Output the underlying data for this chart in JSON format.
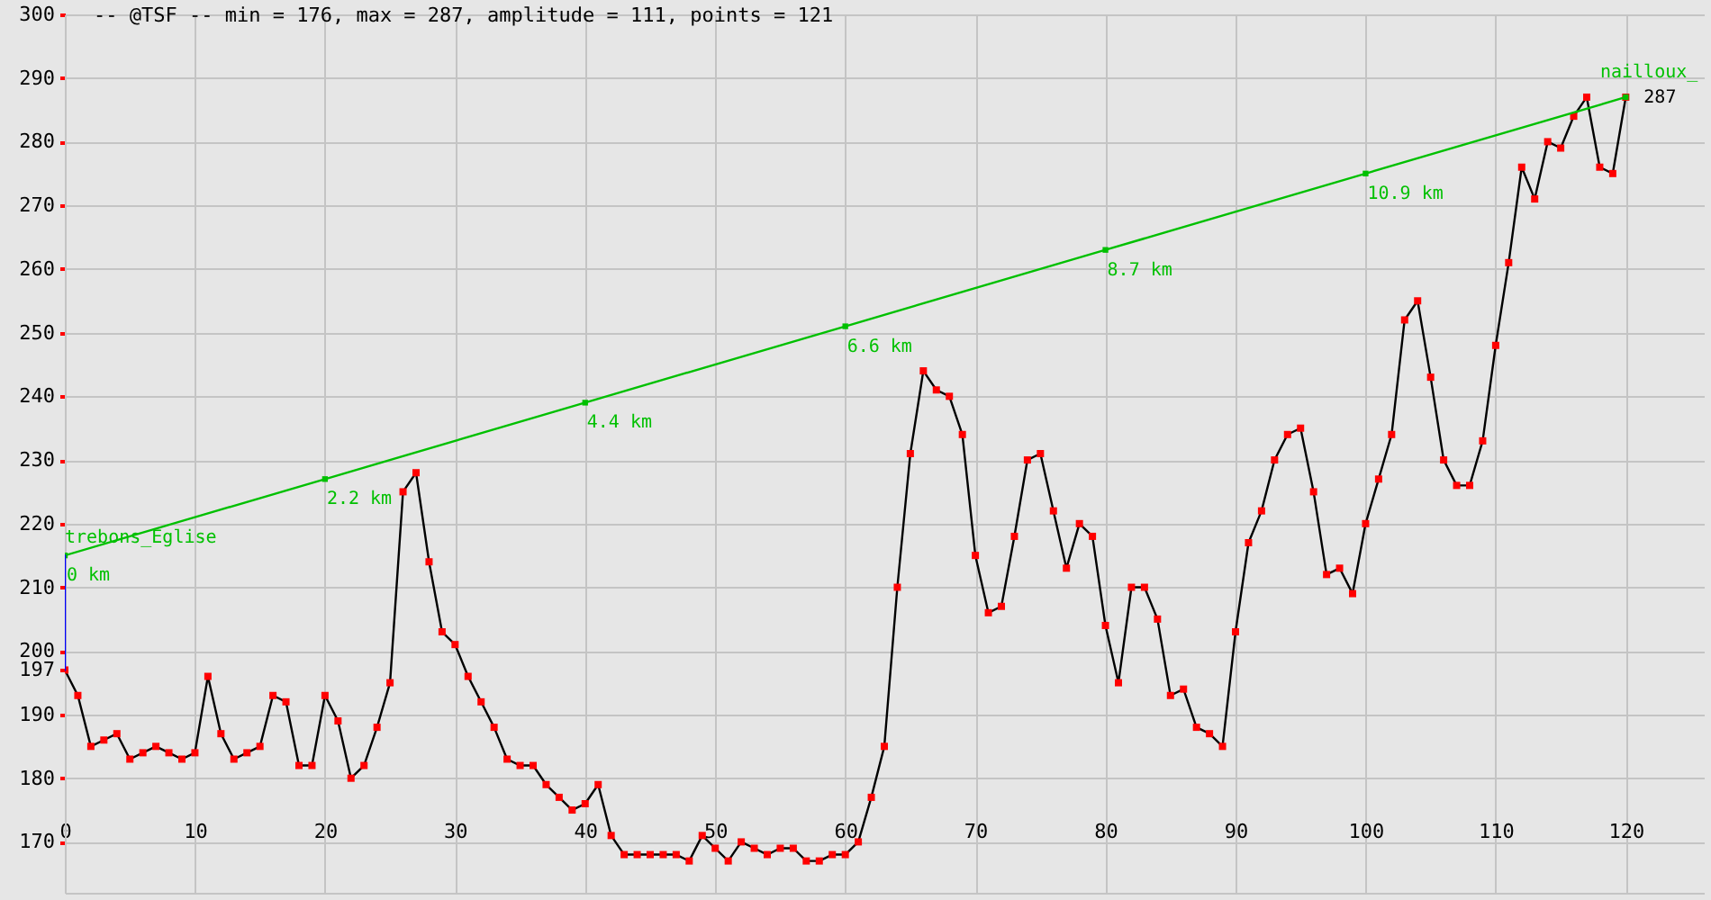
{
  "chart_data": {
    "type": "line",
    "title": "-- @TSF  --   min = 176, max = 287, amplitude = 111, points = 121",
    "x": [
      0,
      1,
      2,
      3,
      4,
      5,
      6,
      7,
      8,
      9,
      10,
      11,
      12,
      13,
      14,
      15,
      16,
      17,
      18,
      19,
      20,
      21,
      22,
      23,
      24,
      25,
      26,
      27,
      28,
      29,
      30,
      31,
      32,
      33,
      34,
      35,
      36,
      37,
      38,
      39,
      40,
      41,
      42,
      43,
      44,
      45,
      46,
      47,
      48,
      49,
      50,
      51,
      52,
      53,
      54,
      55,
      56,
      57,
      58,
      59,
      60,
      61,
      62,
      63,
      64,
      65,
      66,
      67,
      68,
      69,
      70,
      71,
      72,
      73,
      74,
      75,
      76,
      77,
      78,
      79,
      80,
      81,
      82,
      83,
      84,
      85,
      86,
      87,
      88,
      89,
      90,
      91,
      92,
      93,
      94,
      95,
      96,
      97,
      98,
      99,
      100,
      101,
      102,
      103,
      104,
      105,
      106,
      107,
      108,
      109,
      110,
      111,
      112,
      113,
      114,
      115,
      116,
      117,
      118,
      119,
      120
    ],
    "series": [
      {
        "color": "#000000",
        "values": [
          197,
          193,
          185,
          186,
          187,
          183,
          184,
          185,
          184,
          183,
          184,
          196,
          187,
          183,
          184,
          185,
          193,
          192,
          182,
          182,
          193,
          189,
          180,
          182,
          188,
          195,
          225,
          228,
          214,
          203,
          201,
          196,
          192,
          188,
          183,
          182,
          182,
          179,
          177,
          175,
          176,
          179,
          171,
          168,
          168,
          168,
          168,
          168,
          167,
          171,
          169,
          167,
          170,
          169,
          168,
          169,
          169,
          167,
          167,
          168,
          168,
          170,
          177,
          185,
          210,
          231,
          244,
          241,
          240,
          234,
          215,
          206,
          207,
          218,
          230,
          231,
          222,
          213,
          220,
          218,
          204,
          195,
          210,
          210,
          205,
          193,
          194,
          188,
          187,
          185,
          203,
          217,
          222,
          230,
          234,
          235,
          225,
          212,
          213,
          209,
          220,
          227,
          234,
          252,
          255,
          243,
          230,
          226,
          226,
          233,
          248,
          261,
          276,
          271,
          280,
          279,
          284,
          287,
          276,
          275,
          287
        ]
      },
      {
        "type": "scatter",
        "color": "#ff0000",
        "marker": "square",
        "values": [
          197,
          193,
          185,
          186,
          187,
          183,
          184,
          185,
          184,
          183,
          184,
          196,
          187,
          183,
          184,
          185,
          193,
          192,
          182,
          182,
          193,
          189,
          180,
          182,
          188,
          195,
          225,
          228,
          214,
          203,
          201,
          196,
          192,
          188,
          183,
          182,
          182,
          179,
          177,
          175,
          176,
          179,
          171,
          168,
          168,
          168,
          168,
          168,
          167,
          171,
          169,
          167,
          170,
          169,
          168,
          169,
          169,
          167,
          167,
          168,
          168,
          170,
          177,
          185,
          210,
          231,
          244,
          241,
          240,
          234,
          215,
          206,
          207,
          218,
          230,
          231,
          222,
          213,
          220,
          218,
          204,
          195,
          210,
          210,
          205,
          193,
          194,
          188,
          187,
          185,
          203,
          217,
          222,
          230,
          234,
          235,
          225,
          212,
          213,
          209,
          220,
          227,
          234,
          252,
          255,
          243,
          230,
          226,
          226,
          233,
          248,
          261,
          276,
          271,
          280,
          279,
          284,
          287,
          276,
          275,
          287
        ]
      },
      {
        "color": "#00c000",
        "marker": "square",
        "x": [
          0,
          20,
          40,
          60,
          80,
          100,
          120
        ],
        "values": [
          215,
          227,
          239,
          251,
          263,
          275,
          287
        ]
      },
      {
        "color": "#0000ff",
        "x": [
          0,
          0
        ],
        "values": [
          197,
          215
        ]
      }
    ],
    "xlim": [
      0,
      126
    ],
    "xticks": [
      0,
      10,
      20,
      30,
      40,
      50,
      60,
      70,
      80,
      90,
      100,
      110,
      120
    ],
    "ylim": [
      162,
      300
    ],
    "yticks": [
      170,
      180,
      190,
      197,
      200,
      210,
      220,
      230,
      240,
      250,
      260,
      270,
      280,
      290,
      300
    ],
    "grid": true,
    "annotations": [
      {
        "text": "0 km",
        "x": 0,
        "y": 215
      },
      {
        "text": "trebons_Eglise",
        "x": 0,
        "y": 215
      },
      {
        "text": "2.2 km",
        "x": 20,
        "y": 227
      },
      {
        "text": "4.4 km",
        "x": 40,
        "y": 239
      },
      {
        "text": "6.6 km",
        "x": 60,
        "y": 251
      },
      {
        "text": "8.7 km",
        "x": 80,
        "y": 263
      },
      {
        "text": "10.9 km",
        "x": 100,
        "y": 275
      },
      {
        "text": "287",
        "x": 120,
        "y": 287
      },
      {
        "text": "nailloux_",
        "x": 120,
        "y": 287
      }
    ]
  }
}
